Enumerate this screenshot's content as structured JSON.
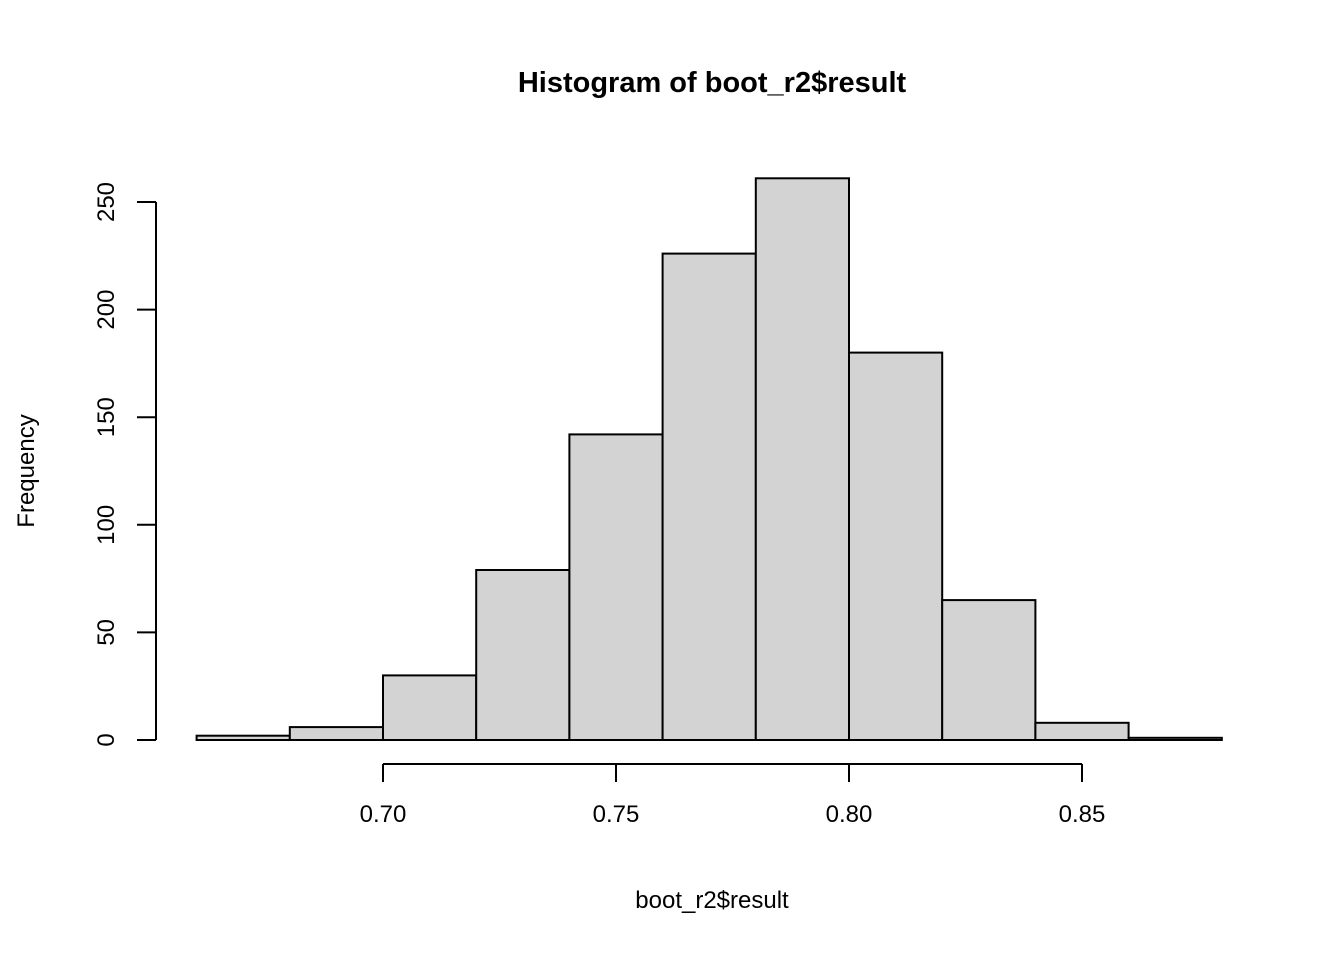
{
  "chart_data": {
    "type": "bar",
    "subtype": "histogram",
    "title": "Histogram of boot_r2$result",
    "xlabel": "boot_r2$result",
    "ylabel": "Frequency",
    "bins": {
      "start": 0.66,
      "width": 0.02,
      "edges": [
        0.66,
        0.68,
        0.7,
        0.72,
        0.74,
        0.76,
        0.78,
        0.8,
        0.82,
        0.84,
        0.86,
        0.88
      ],
      "counts": [
        2,
        6,
        30,
        79,
        142,
        226,
        261,
        180,
        65,
        8,
        1
      ]
    },
    "x_ticks": {
      "values": [
        0.7,
        0.75,
        0.8,
        0.85
      ],
      "labels": [
        "0.70",
        "0.75",
        "0.80",
        "0.85"
      ]
    },
    "y_ticks": {
      "values": [
        0,
        50,
        100,
        150,
        200,
        250
      ],
      "labels": [
        "0",
        "50",
        "100",
        "150",
        "200",
        "250"
      ]
    },
    "xlim": [
      0.66,
      0.88
    ],
    "ylim": [
      0,
      250
    ],
    "grid": false,
    "legend": null,
    "colors": {
      "bar_fill": "#d3d3d3",
      "bar_border": "#000000",
      "axis": "#000000",
      "text": "#000000",
      "background": "#ffffff"
    }
  }
}
